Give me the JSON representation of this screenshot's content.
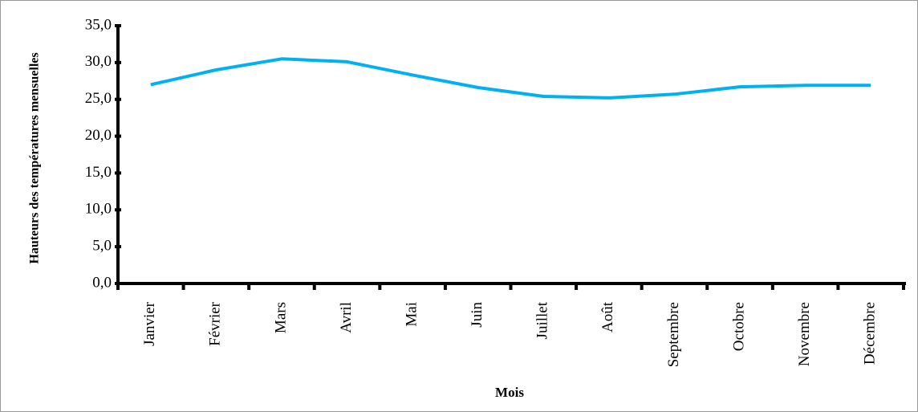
{
  "chart_data": {
    "type": "line",
    "x_label": "Mois",
    "y_label": "Hauteurs des températures mensuelles",
    "categories": [
      "Janvier",
      "Février",
      "Mars",
      "Avril",
      "Mai",
      "Juin",
      "Juillet",
      "Août",
      "Septembre",
      "Octobre",
      "Novembre",
      "Décembre"
    ],
    "values": [
      27.0,
      29.0,
      30.5,
      30.1,
      28.3,
      26.6,
      25.4,
      25.2,
      25.7,
      26.7,
      26.9,
      26.9
    ],
    "color": "#00b0f0",
    "ylim": [
      0,
      35
    ],
    "yticks": [
      {
        "value": 0,
        "label": "0,0"
      },
      {
        "value": 5,
        "label": "5,0"
      },
      {
        "value": 10,
        "label": "10,0"
      },
      {
        "value": 15,
        "label": "15,0"
      },
      {
        "value": 20,
        "label": "20,0"
      },
      {
        "value": 25,
        "label": "25,0"
      },
      {
        "value": 30,
        "label": "30,0"
      },
      {
        "value": 35,
        "label": "35,0"
      }
    ],
    "grid": false
  }
}
